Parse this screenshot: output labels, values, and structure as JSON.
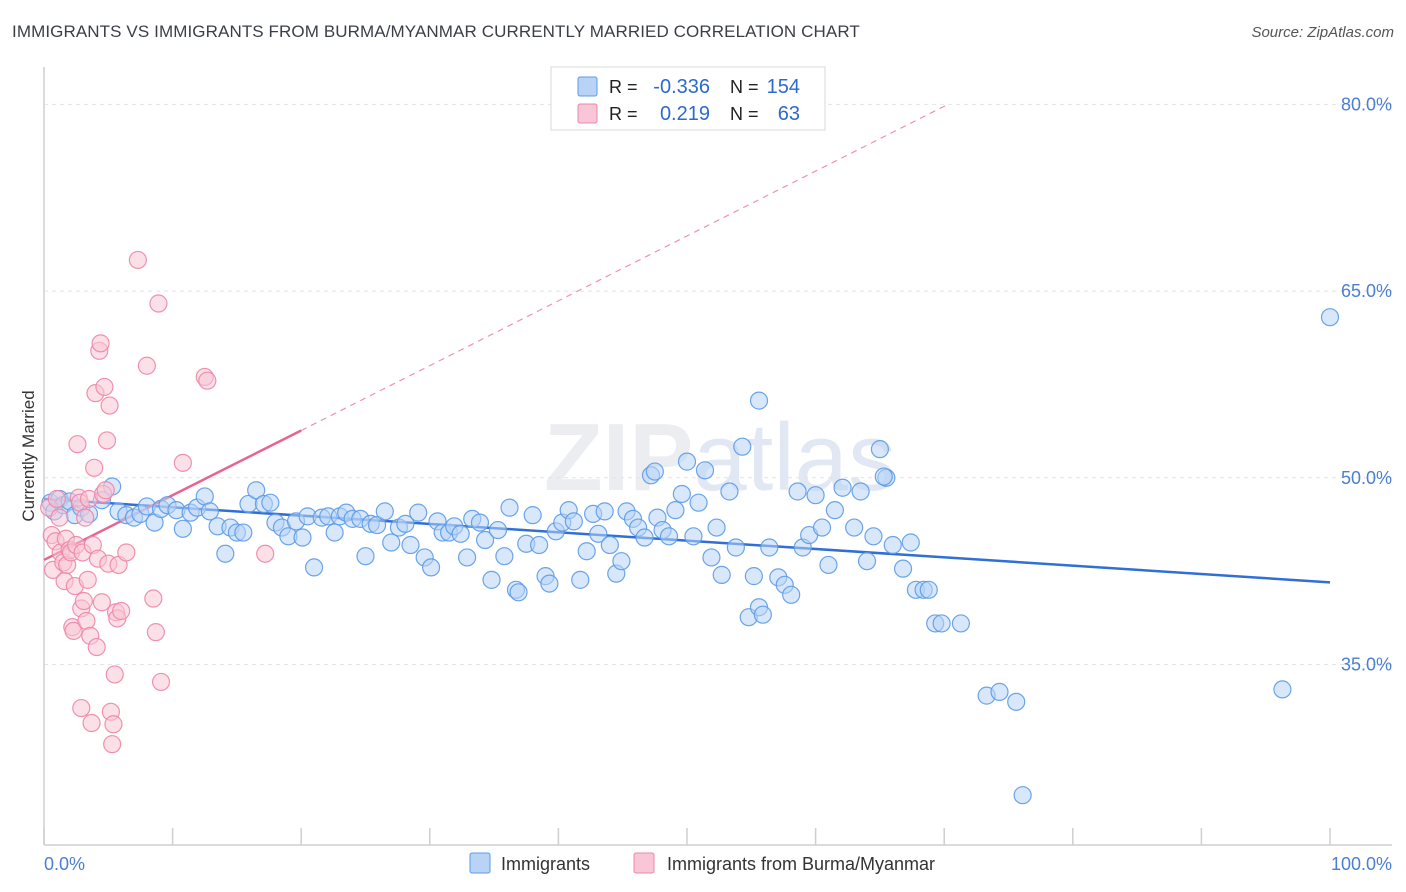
{
  "header": {
    "title": "IMMIGRANTS VS IMMIGRANTS FROM BURMA/MYANMAR CURRENTLY MARRIED CORRELATION CHART",
    "source": "Source: ZipAtlas.com"
  },
  "watermark": "ZIPatlas",
  "colors": {
    "blue": "#5b9be8",
    "blue_fill": "#b8d3f5",
    "blue_line": "#2f6fd6",
    "pink": "#ee85a8",
    "pink_fill": "#f8c6d6",
    "pink_line": "#e8638f",
    "tick_text": "#4a7fd1",
    "grid": "#e4e4e4"
  },
  "stats": {
    "r_label": "R =",
    "n_label": "N =",
    "rows": [
      {
        "series": "Immigrants",
        "r": "-0.336",
        "n": "154"
      },
      {
        "series": "Immigrants from Burma/Myanmar",
        "r": "0.219",
        "n": "63"
      }
    ]
  },
  "chart_data": {
    "type": "scatter",
    "title": "IMMIGRANTS VS IMMIGRANTS FROM BURMA/MYANMAR CURRENTLY MARRIED CORRELATION CHART",
    "xlabel": "",
    "ylabel": "Currently Married",
    "xlim": [
      0,
      100
    ],
    "ylim": [
      20.5,
      83
    ],
    "x_tick_labels": [
      "0.0%",
      "100.0%"
    ],
    "x_tick_values": [
      0,
      100
    ],
    "y_tick_labels": [
      "35.0%",
      "50.0%",
      "65.0%",
      "80.0%"
    ],
    "y_tick_values": [
      35,
      50,
      65,
      80
    ],
    "legend": [
      "Immigrants",
      "Immigrants from Burma/Myanmar"
    ],
    "series": [
      {
        "name": "Immigrants",
        "color": "#5b9be8",
        "trend": {
          "x0": 0,
          "y0": 48.3,
          "x1": 100,
          "y1": 41.6
        },
        "points": [
          [
            0.5,
            48.0
          ],
          [
            0.8,
            47.3
          ],
          [
            1.2,
            48.3
          ],
          [
            1.5,
            47.8
          ],
          [
            2.0,
            48.1
          ],
          [
            2.4,
            47.0
          ],
          [
            2.9,
            47.6
          ],
          [
            3.5,
            47.1
          ],
          [
            4.5,
            48.2
          ],
          [
            5.3,
            49.3
          ],
          [
            5.8,
            47.3
          ],
          [
            6.4,
            47.0
          ],
          [
            7.0,
            46.8
          ],
          [
            7.5,
            47.1
          ],
          [
            8.0,
            47.7
          ],
          [
            8.6,
            46.4
          ],
          [
            9.1,
            47.5
          ],
          [
            9.6,
            47.8
          ],
          [
            10.3,
            47.4
          ],
          [
            10.8,
            45.9
          ],
          [
            11.4,
            47.2
          ],
          [
            11.9,
            47.6
          ],
          [
            12.5,
            48.5
          ],
          [
            12.9,
            47.3
          ],
          [
            13.5,
            46.1
          ],
          [
            14.1,
            43.9
          ],
          [
            14.5,
            46.0
          ],
          [
            15.0,
            45.6
          ],
          [
            15.5,
            45.6
          ],
          [
            15.9,
            47.9
          ],
          [
            16.5,
            49.0
          ],
          [
            17.1,
            47.9
          ],
          [
            17.6,
            48.0
          ],
          [
            18.0,
            46.4
          ],
          [
            18.5,
            46.0
          ],
          [
            19.0,
            45.3
          ],
          [
            19.6,
            46.5
          ],
          [
            20.1,
            45.2
          ],
          [
            20.5,
            46.9
          ],
          [
            21.0,
            42.8
          ],
          [
            21.6,
            46.8
          ],
          [
            22.1,
            46.9
          ],
          [
            22.6,
            45.6
          ],
          [
            23.0,
            46.9
          ],
          [
            23.5,
            47.2
          ],
          [
            24.0,
            46.7
          ],
          [
            24.6,
            46.7
          ],
          [
            25.0,
            43.7
          ],
          [
            25.4,
            46.3
          ],
          [
            25.9,
            46.2
          ],
          [
            26.5,
            47.3
          ],
          [
            27.0,
            44.8
          ],
          [
            27.6,
            46.0
          ],
          [
            28.1,
            46.3
          ],
          [
            28.5,
            44.6
          ],
          [
            29.1,
            47.2
          ],
          [
            29.6,
            43.6
          ],
          [
            30.1,
            42.8
          ],
          [
            30.6,
            46.5
          ],
          [
            31.0,
            45.6
          ],
          [
            31.5,
            45.6
          ],
          [
            31.9,
            46.1
          ],
          [
            32.4,
            45.5
          ],
          [
            32.9,
            43.6
          ],
          [
            33.3,
            46.7
          ],
          [
            33.9,
            46.4
          ],
          [
            34.3,
            45.0
          ],
          [
            34.8,
            41.8
          ],
          [
            35.3,
            45.8
          ],
          [
            35.8,
            43.7
          ],
          [
            36.2,
            47.6
          ],
          [
            36.7,
            41.0
          ],
          [
            36.9,
            40.8
          ],
          [
            37.5,
            44.7
          ],
          [
            38.0,
            47.0
          ],
          [
            38.5,
            44.6
          ],
          [
            39.0,
            42.1
          ],
          [
            39.3,
            41.5
          ],
          [
            39.8,
            45.7
          ],
          [
            40.3,
            46.4
          ],
          [
            40.8,
            47.4
          ],
          [
            41.2,
            46.5
          ],
          [
            41.7,
            41.8
          ],
          [
            42.2,
            44.1
          ],
          [
            42.7,
            47.1
          ],
          [
            43.1,
            45.5
          ],
          [
            43.6,
            47.3
          ],
          [
            44.0,
            44.6
          ],
          [
            44.5,
            42.3
          ],
          [
            44.9,
            43.3
          ],
          [
            45.3,
            47.3
          ],
          [
            45.8,
            46.7
          ],
          [
            46.2,
            46.0
          ],
          [
            46.7,
            45.2
          ],
          [
            47.2,
            50.2
          ],
          [
            47.7,
            46.8
          ],
          [
            48.1,
            45.8
          ],
          [
            48.6,
            45.3
          ],
          [
            49.1,
            47.4
          ],
          [
            49.6,
            48.7
          ],
          [
            50.0,
            51.3
          ],
          [
            50.5,
            45.3
          ],
          [
            50.9,
            48.0
          ],
          [
            51.4,
            50.6
          ],
          [
            51.9,
            43.6
          ],
          [
            52.3,
            46.0
          ],
          [
            52.7,
            42.2
          ],
          [
            53.3,
            48.9
          ],
          [
            53.8,
            44.4
          ],
          [
            54.3,
            52.5
          ],
          [
            54.8,
            38.8
          ],
          [
            55.2,
            42.1
          ],
          [
            55.6,
            39.6
          ],
          [
            55.9,
            39.0
          ],
          [
            56.4,
            44.4
          ],
          [
            57.1,
            42.0
          ],
          [
            57.6,
            41.4
          ],
          [
            58.1,
            40.6
          ],
          [
            58.6,
            48.9
          ],
          [
            59.0,
            44.4
          ],
          [
            59.5,
            45.4
          ],
          [
            60.0,
            48.6
          ],
          [
            60.5,
            46.0
          ],
          [
            61.0,
            43.0
          ],
          [
            61.5,
            47.4
          ],
          [
            62.1,
            49.2
          ],
          [
            63.0,
            46.0
          ],
          [
            63.5,
            48.9
          ],
          [
            64.0,
            43.3
          ],
          [
            64.5,
            45.3
          ],
          [
            65.0,
            52.3
          ],
          [
            65.5,
            50.0
          ],
          [
            66.0,
            44.6
          ],
          [
            66.8,
            42.7
          ],
          [
            67.4,
            44.8
          ],
          [
            67.8,
            41.0
          ],
          [
            68.4,
            41.0
          ],
          [
            68.8,
            41.0
          ],
          [
            69.3,
            38.3
          ],
          [
            69.8,
            38.3
          ],
          [
            71.3,
            38.3
          ],
          [
            73.3,
            32.5
          ],
          [
            74.3,
            32.8
          ],
          [
            75.6,
            32.0
          ],
          [
            76.1,
            24.5
          ],
          [
            96.3,
            33.0
          ],
          [
            55.6,
            56.2
          ],
          [
            65.3,
            50.1
          ],
          [
            47.5,
            50.5
          ],
          [
            100.0,
            62.9
          ]
        ]
      },
      {
        "name": "Immigrants from Burma/Myanmar",
        "color": "#ee85a8",
        "trend": {
          "x0": 0,
          "y0": 43.4,
          "x1": 20,
          "y1": 53.8
        },
        "trend_dashed": {
          "x0": 20,
          "y0": 53.8,
          "x1": 70.3,
          "y1": 80.0
        },
        "points": [
          [
            0.4,
            47.6
          ],
          [
            0.6,
            45.4
          ],
          [
            0.7,
            42.6
          ],
          [
            0.9,
            44.9
          ],
          [
            1.0,
            48.3
          ],
          [
            1.2,
            46.8
          ],
          [
            1.3,
            44.0
          ],
          [
            1.5,
            43.2
          ],
          [
            1.6,
            41.7
          ],
          [
            1.7,
            45.1
          ],
          [
            1.8,
            43.0
          ],
          [
            2.0,
            44.2
          ],
          [
            2.1,
            44.0
          ],
          [
            2.2,
            38.0
          ],
          [
            2.3,
            37.7
          ],
          [
            2.4,
            41.3
          ],
          [
            2.5,
            44.6
          ],
          [
            2.6,
            52.7
          ],
          [
            2.7,
            48.4
          ],
          [
            2.8,
            48.0
          ],
          [
            2.9,
            39.5
          ],
          [
            3.0,
            44.0
          ],
          [
            3.1,
            40.1
          ],
          [
            3.2,
            46.8
          ],
          [
            3.3,
            38.5
          ],
          [
            3.4,
            41.8
          ],
          [
            3.5,
            48.3
          ],
          [
            3.6,
            37.3
          ],
          [
            3.8,
            44.6
          ],
          [
            3.9,
            50.8
          ],
          [
            4.0,
            56.8
          ],
          [
            4.1,
            36.4
          ],
          [
            4.2,
            43.5
          ],
          [
            4.3,
            60.2
          ],
          [
            4.4,
            60.8
          ],
          [
            4.5,
            40.0
          ],
          [
            4.6,
            48.7
          ],
          [
            4.7,
            57.3
          ],
          [
            4.8,
            49.0
          ],
          [
            4.9,
            53.0
          ],
          [
            5.0,
            43.1
          ],
          [
            5.1,
            55.8
          ],
          [
            5.2,
            31.2
          ],
          [
            5.3,
            28.6
          ],
          [
            5.4,
            30.2
          ],
          [
            5.5,
            34.2
          ],
          [
            5.6,
            39.2
          ],
          [
            5.7,
            38.7
          ],
          [
            5.8,
            43.0
          ],
          [
            6.0,
            39.3
          ],
          [
            6.4,
            44.0
          ],
          [
            7.3,
            67.5
          ],
          [
            8.0,
            59.0
          ],
          [
            8.5,
            40.3
          ],
          [
            8.7,
            37.6
          ],
          [
            8.9,
            64.0
          ],
          [
            9.1,
            33.6
          ],
          [
            10.8,
            51.2
          ],
          [
            12.5,
            58.1
          ],
          [
            12.7,
            57.8
          ],
          [
            17.2,
            43.9
          ],
          [
            2.9,
            31.5
          ],
          [
            3.7,
            30.3
          ]
        ]
      }
    ]
  },
  "bottom_legend": {
    "items": [
      "Immigrants",
      "Immigrants from Burma/Myanmar"
    ]
  }
}
